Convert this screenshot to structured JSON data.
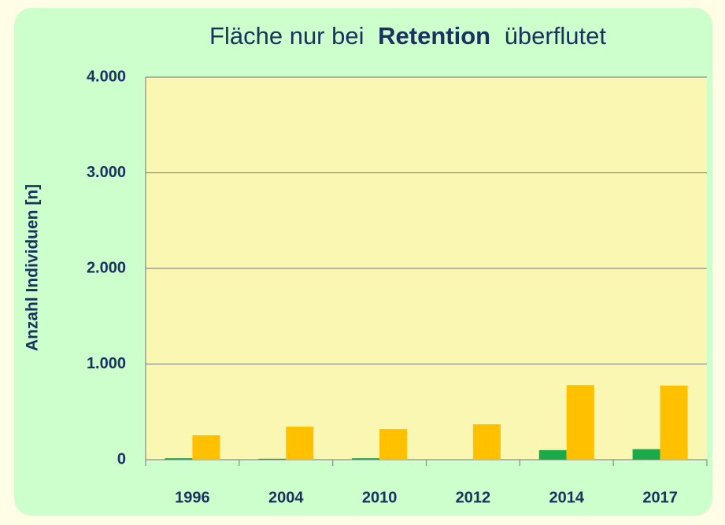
{
  "chart_data": {
    "type": "bar",
    "title_parts": [
      "Fläche nur bei",
      "Retention",
      "überflutet"
    ],
    "ylabel": "Anzahl Individuen [n]",
    "categories": [
      "1996",
      "2004",
      "2010",
      "2012",
      "2014",
      "2017"
    ],
    "series": [
      {
        "color": "#1aaa4a",
        "values": [
          15,
          10,
          15,
          0,
          100,
          110
        ]
      },
      {
        "color": "#ffc000",
        "values": [
          255,
          345,
          320,
          370,
          780,
          775
        ]
      }
    ],
    "ylim": [
      0,
      4000
    ],
    "yticks": [
      0,
      {
        "value": 1000,
        "label": "1.000"
      },
      {
        "value": 2000,
        "label": "2.000"
      },
      {
        "value": 3000,
        "label": "3.000"
      },
      {
        "value": 4000,
        "label": "4.000"
      }
    ],
    "grid": true
  }
}
